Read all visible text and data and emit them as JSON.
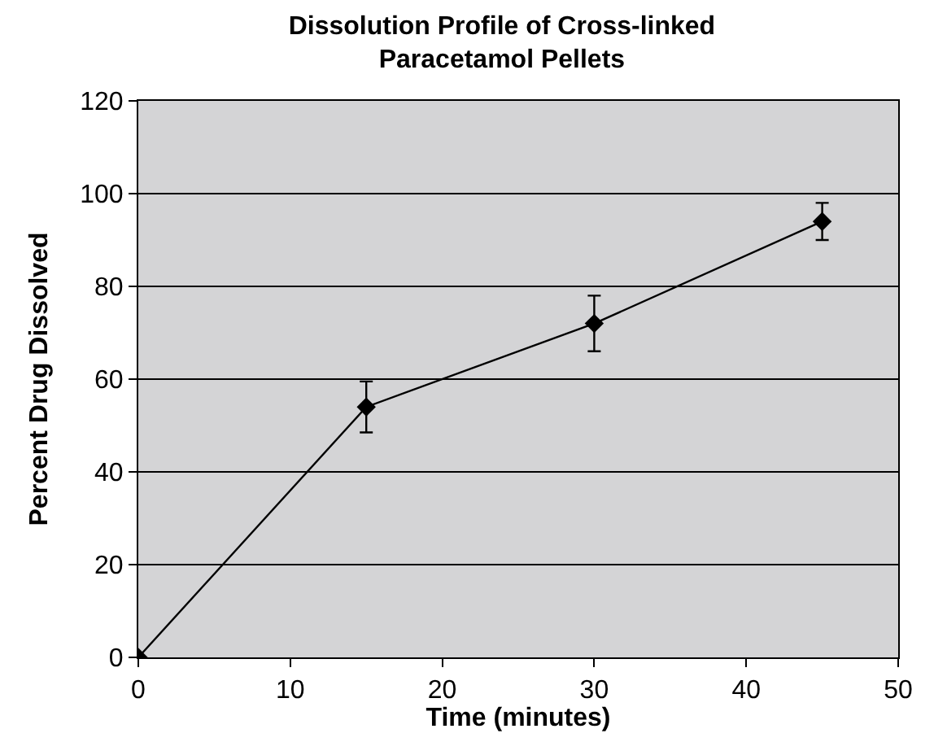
{
  "chart_data": {
    "type": "line",
    "title": "Dissolution Profile of Cross-linked\nParacetamol Pellets",
    "xlabel": "Time (minutes)",
    "ylabel": "Percent Drug Dissolved",
    "x": [
      0,
      15,
      30,
      45
    ],
    "series": [
      {
        "color": "#000000",
        "values": [
          0,
          54,
          72,
          94
        ],
        "errors": [
          null,
          5.5,
          6,
          4
        ]
      }
    ],
    "xlim": [
      0,
      50
    ],
    "xticks": [
      0,
      10,
      20,
      30,
      40,
      50
    ],
    "ylim": [
      0,
      120
    ],
    "yticks": [
      0,
      20,
      40,
      60,
      80,
      100,
      120
    ],
    "grid": "y",
    "marker": "diamond",
    "line_style": "solid",
    "legend": false
  }
}
